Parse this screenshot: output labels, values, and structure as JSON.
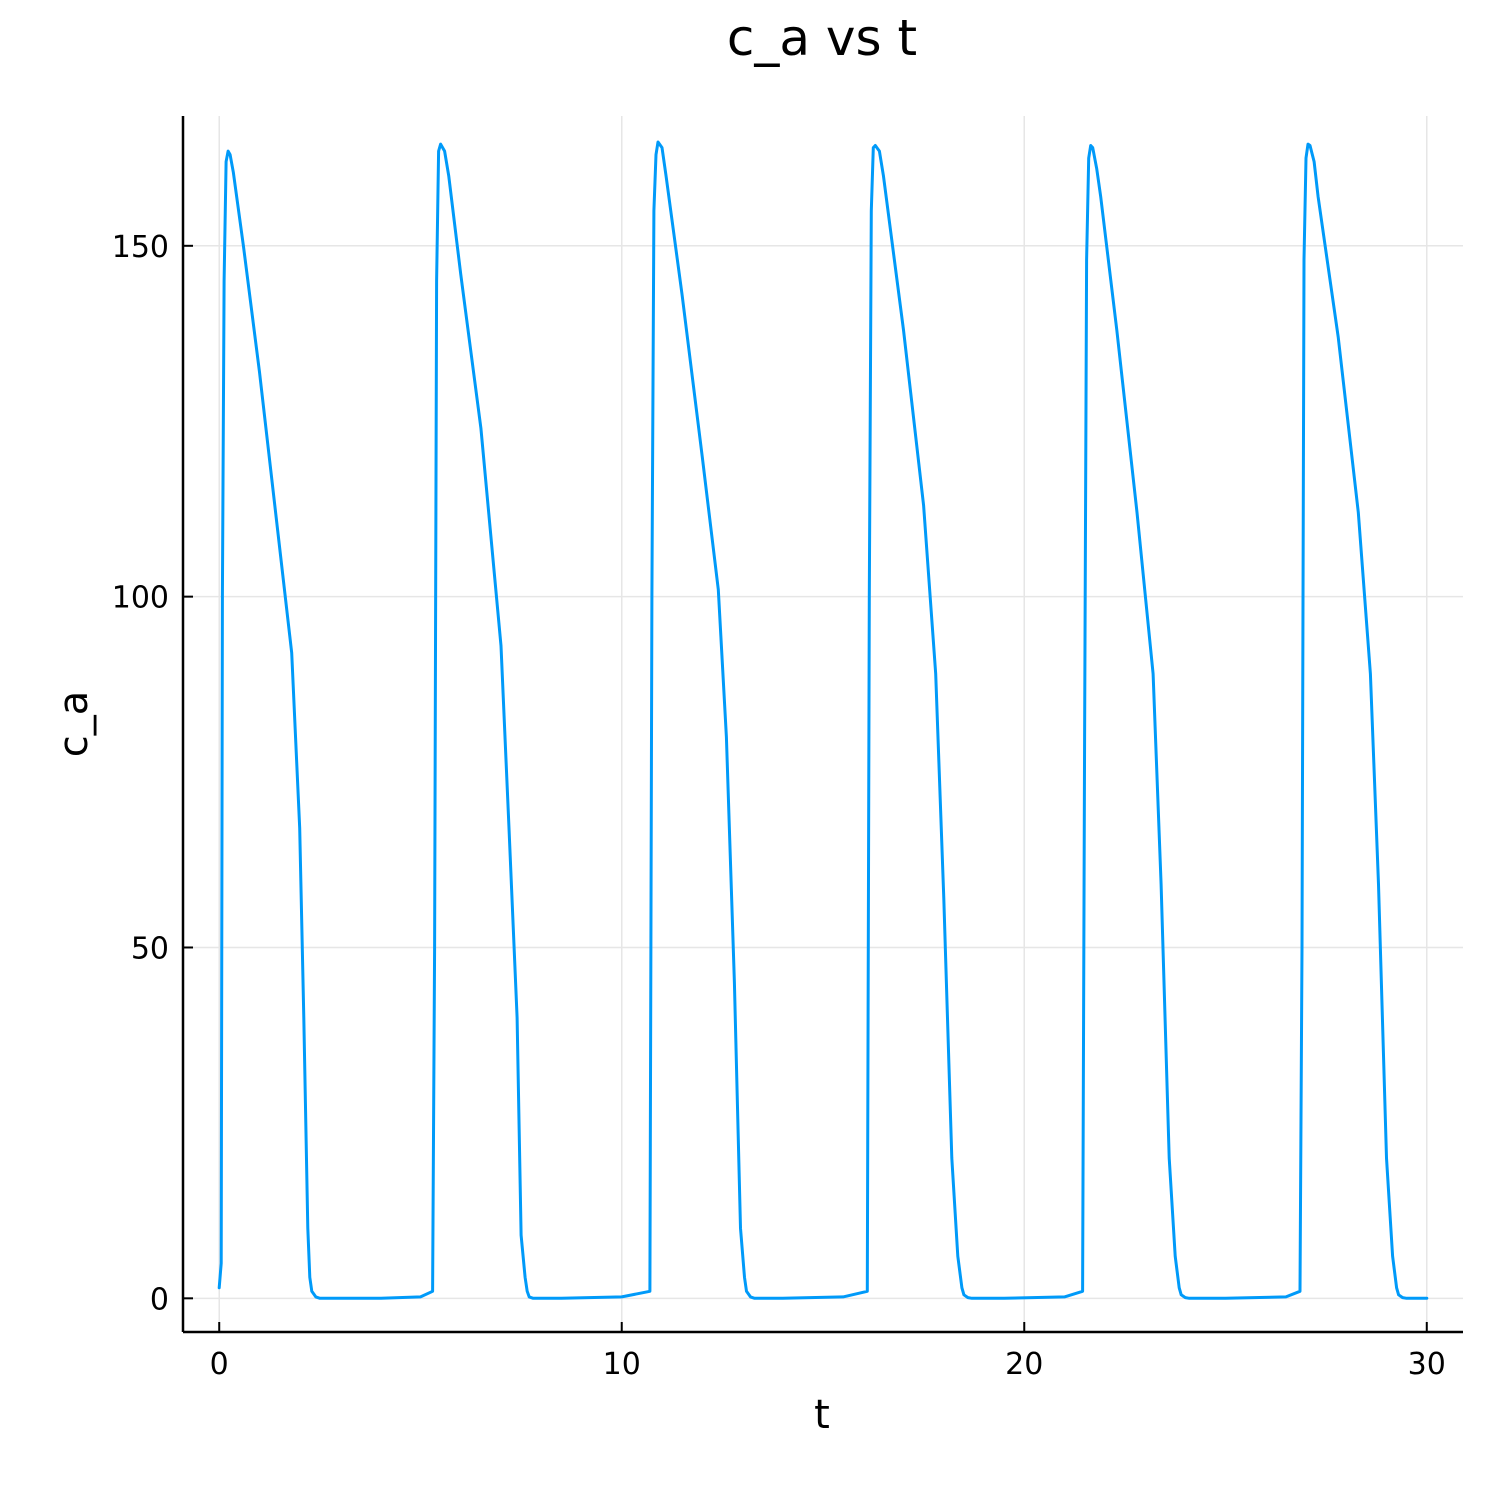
{
  "chart_data": {
    "type": "line",
    "title": "c_a vs t",
    "xlabel": "t",
    "ylabel": "c_a",
    "xlim": [
      -0.9,
      30.9
    ],
    "ylim": [
      -4.8,
      168.5
    ],
    "xticks": [
      0,
      10,
      20,
      30
    ],
    "yticks": [
      0,
      50,
      100,
      150
    ],
    "xtick_labels": [
      "0",
      "10",
      "20",
      "30"
    ],
    "ytick_labels": [
      "0",
      "50",
      "100",
      "150"
    ],
    "grid": true,
    "legend": "none",
    "series": [
      {
        "color": "#009af9",
        "x": [
          0.0,
          0.05,
          0.08,
          0.12,
          0.17,
          0.22,
          0.27,
          0.35,
          0.6,
          1.0,
          1.4,
          1.8,
          2.0,
          2.1,
          2.2,
          2.25,
          2.3,
          2.4,
          2.5,
          3.0,
          4.0,
          5.0,
          5.3,
          5.35,
          5.4,
          5.45,
          5.5,
          5.6,
          5.7,
          6.0,
          6.5,
          7.0,
          7.2,
          7.4,
          7.5,
          7.6,
          7.65,
          7.7,
          7.8,
          7.9,
          8.5,
          10.0,
          10.7,
          10.75,
          10.8,
          10.85,
          10.9,
          11.0,
          11.1,
          11.5,
          12.0,
          12.4,
          12.6,
          12.8,
          12.95,
          13.05,
          13.1,
          13.2,
          13.3,
          14.0,
          15.5,
          16.1,
          16.15,
          16.2,
          16.25,
          16.3,
          16.4,
          16.5,
          17.0,
          17.5,
          17.8,
          18.0,
          18.2,
          18.35,
          18.45,
          18.5,
          18.6,
          18.7,
          19.5,
          21.0,
          21.45,
          21.5,
          21.55,
          21.6,
          21.65,
          21.7,
          21.8,
          21.9,
          22.3,
          22.8,
          23.2,
          23.4,
          23.6,
          23.75,
          23.85,
          23.9,
          24.0,
          24.1,
          25.0,
          26.5,
          26.85,
          26.9,
          26.95,
          27.0,
          27.05,
          27.1,
          27.2,
          27.3,
          27.8,
          28.3,
          28.6,
          28.8,
          29.0,
          29.15,
          29.25,
          29.3,
          29.4,
          29.5,
          30.0
        ],
        "y": [
          1.5,
          5.0,
          100.0,
          145.0,
          162.0,
          163.5,
          163.0,
          160.5,
          150.0,
          132.0,
          112.0,
          92.0,
          67.0,
          40.0,
          10.0,
          3.0,
          1.0,
          0.2,
          0.0,
          0.0,
          0.0,
          0.2,
          1.0,
          50.0,
          145.0,
          163.5,
          164.5,
          163.5,
          160.0,
          146.0,
          124.0,
          93.0,
          67.0,
          40.0,
          9.0,
          3.0,
          1.0,
          0.2,
          0.0,
          0.0,
          0.0,
          0.2,
          1.0,
          100.0,
          155.0,
          163.0,
          164.8,
          164.0,
          160.0,
          143.0,
          120.0,
          101.0,
          80.0,
          45.0,
          10.0,
          3.0,
          1.0,
          0.2,
          0.0,
          0.0,
          0.2,
          1.0,
          100.0,
          155.0,
          164.0,
          164.3,
          163.5,
          160.0,
          138.0,
          113.0,
          89.0,
          57.0,
          20.0,
          6.0,
          1.5,
          0.5,
          0.1,
          0.0,
          0.0,
          0.2,
          1.0,
          80.0,
          148.0,
          162.5,
          164.3,
          164.0,
          161.0,
          157.0,
          138.0,
          112.0,
          89.0,
          59.0,
          20.0,
          6.0,
          1.5,
          0.5,
          0.1,
          0.0,
          0.0,
          0.2,
          1.0,
          50.0,
          148.0,
          162.5,
          164.5,
          164.3,
          162.0,
          157.0,
          137.0,
          112.0,
          89.0,
          59.0,
          20.0,
          6.0,
          1.5,
          0.5,
          0.1,
          0.0,
          0.0
        ]
      }
    ]
  }
}
